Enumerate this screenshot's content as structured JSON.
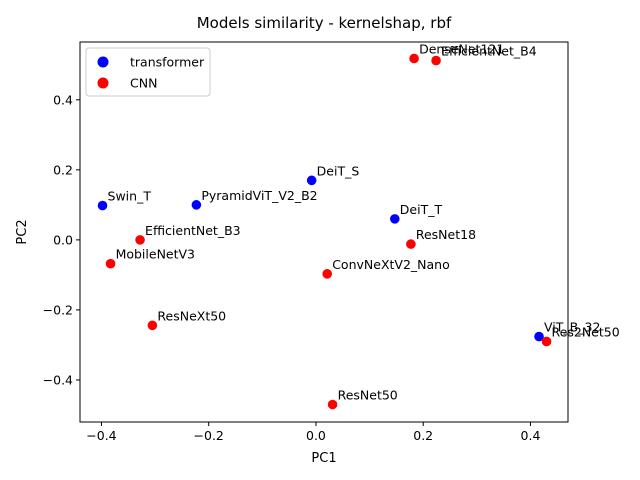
{
  "chart_data": {
    "type": "scatter",
    "title": "Models similarity - kernelshap, rbf",
    "xlabel": "PC1",
    "ylabel": "PC2",
    "xlim": [
      -0.44,
      0.47
    ],
    "ylim": [
      -0.52,
      0.565
    ],
    "xticks": [
      -0.4,
      -0.2,
      0.0,
      0.2,
      0.4
    ],
    "xtick_labels": [
      "−0.4",
      "−0.2",
      "0.0",
      "0.2",
      "0.4"
    ],
    "yticks": [
      -0.4,
      -0.2,
      0.0,
      0.2,
      0.4
    ],
    "ytick_labels": [
      "−0.4",
      "−0.2",
      "0.0",
      "0.2",
      "0.4"
    ],
    "grid": false,
    "legend_position": "top-left",
    "series": [
      {
        "name": "transformer",
        "color": "#0000ff",
        "points": [
          {
            "label": "Swin_T",
            "x": -0.398,
            "y": 0.098
          },
          {
            "label": "PyramidViT_V2_B2",
            "x": -0.223,
            "y": 0.1
          },
          {
            "label": "DeiT_S",
            "x": -0.008,
            "y": 0.17
          },
          {
            "label": "DeiT_T",
            "x": 0.147,
            "y": 0.06
          },
          {
            "label": "ViT_B_32",
            "x": 0.416,
            "y": -0.276
          }
        ]
      },
      {
        "name": "CNN",
        "color": "#ff0000",
        "points": [
          {
            "label": "DenseNet121",
            "x": 0.183,
            "y": 0.518
          },
          {
            "label": "EfficientNet_B4",
            "x": 0.224,
            "y": 0.512
          },
          {
            "label": "EfficientNet_B3",
            "x": -0.328,
            "y": 0.0
          },
          {
            "label": "MobileNetV3",
            "x": -0.383,
            "y": -0.068
          },
          {
            "label": "ResNet18",
            "x": 0.177,
            "y": -0.012
          },
          {
            "label": "ConvNeXtV2_Nano",
            "x": 0.021,
            "y": -0.097
          },
          {
            "label": "ResNeXt50",
            "x": -0.305,
            "y": -0.244
          },
          {
            "label": "Res2Net50",
            "x": 0.43,
            "y": -0.29
          },
          {
            "label": "ResNet50",
            "x": 0.031,
            "y": -0.47
          }
        ]
      }
    ]
  }
}
